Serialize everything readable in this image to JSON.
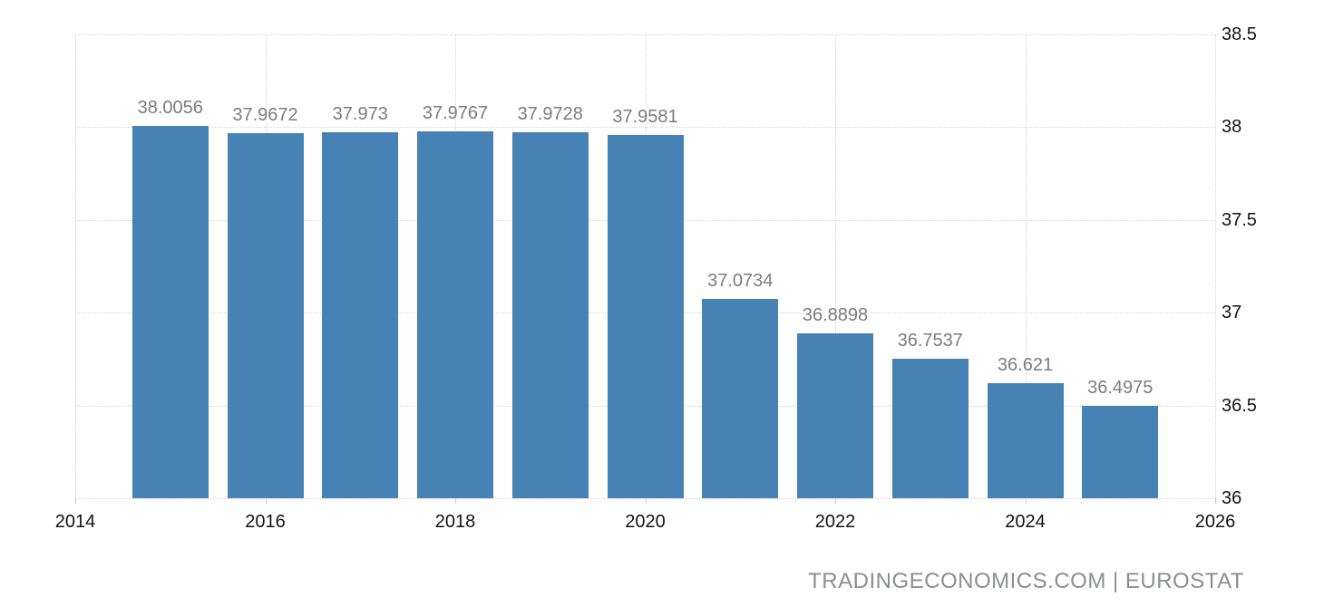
{
  "watermark": {
    "text": "TRADINGECONOMICS.COM | EUROSTAT"
  },
  "chart_data": {
    "type": "bar",
    "title": "",
    "xlabel": "",
    "ylabel": "",
    "categories": [
      2015,
      2016,
      2017,
      2018,
      2019,
      2020,
      2021,
      2022,
      2023,
      2024,
      2025
    ],
    "values": [
      38.0056,
      37.9672,
      37.973,
      37.9767,
      37.9728,
      37.9581,
      37.0734,
      36.8898,
      36.7537,
      36.621,
      36.4975
    ],
    "value_labels": [
      "38.0056",
      "37.9672",
      "37.973",
      "37.9767",
      "37.9728",
      "37.9581",
      "37.0734",
      "36.8898",
      "36.7537",
      "36.621",
      "36.4975"
    ],
    "xlim": [
      2014,
      2026
    ],
    "ylim": [
      36,
      38.5
    ],
    "yticks": [
      36,
      36.5,
      37,
      37.5,
      38,
      38.5
    ],
    "ytick_labels": [
      "36",
      "36.5",
      "37",
      "37.5",
      "38",
      "38.5"
    ],
    "xticks": [
      2014,
      2016,
      2018,
      2020,
      2022,
      2024,
      2026
    ],
    "xtick_labels": [
      "2014",
      "2016",
      "2018",
      "2020",
      "2022",
      "2024",
      "2026"
    ],
    "grid": "dotted",
    "legend_position": "none",
    "source_label": "TRADINGECONOMICS.COM | EUROSTAT",
    "colors": {
      "bar": "#4682b4",
      "value_label": "#7d7d7d",
      "tick_label": "#141414",
      "gridline": "#d4d4d4",
      "watermark": "#8b8e92",
      "background": "#ffffff"
    }
  }
}
